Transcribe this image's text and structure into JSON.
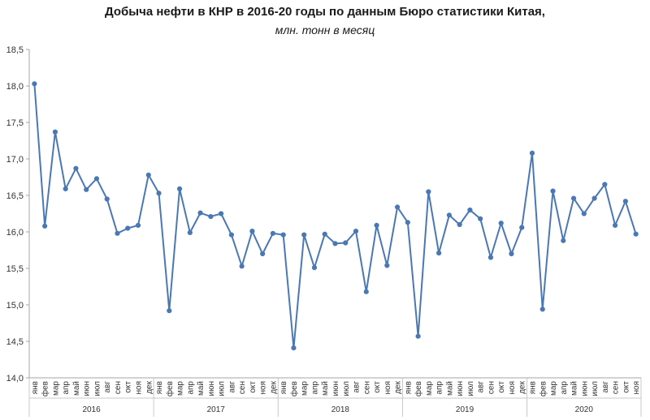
{
  "chart_data": {
    "type": "line",
    "title": "Добыча  нефти  в КНР в 2016-20 годы по данным  Бюро статистики  Китая,",
    "subtitle": "млн. тонн  в месяц",
    "xlabel": "",
    "ylabel": "",
    "ylim": [
      14.0,
      18.5
    ],
    "yticks": [
      "14,0",
      "14,5",
      "15,0",
      "15,5",
      "16,0",
      "16,5",
      "17,0",
      "17,5",
      "18,0",
      "18,5"
    ],
    "grid": false,
    "years": [
      "2016",
      "2017",
      "2018",
      "2019",
      "2020"
    ],
    "months": [
      "янв",
      "фев",
      "мар",
      "апр",
      "май",
      "июн",
      "июл",
      "авг",
      "сен",
      "окт",
      "ноя",
      "дек"
    ],
    "last_year_months": 11,
    "series": [
      {
        "name": "Добыча нефти",
        "color": "#4a78b3",
        "values": [
          18.03,
          16.08,
          17.37,
          16.59,
          16.87,
          16.58,
          16.73,
          16.45,
          15.98,
          16.05,
          16.09,
          16.78,
          16.53,
          14.92,
          16.59,
          15.99,
          16.26,
          16.21,
          16.25,
          15.96,
          15.53,
          16.01,
          15.7,
          15.98,
          15.96,
          14.41,
          15.96,
          15.51,
          15.97,
          15.84,
          15.85,
          16.01,
          15.18,
          16.09,
          15.54,
          16.34,
          16.13,
          14.57,
          16.55,
          15.71,
          16.23,
          16.1,
          16.3,
          16.18,
          15.65,
          16.12,
          15.7,
          16.06,
          17.08,
          14.94,
          16.56,
          15.88,
          16.46,
          16.25,
          16.46,
          16.65,
          16.09,
          16.42,
          15.97
        ]
      }
    ]
  }
}
